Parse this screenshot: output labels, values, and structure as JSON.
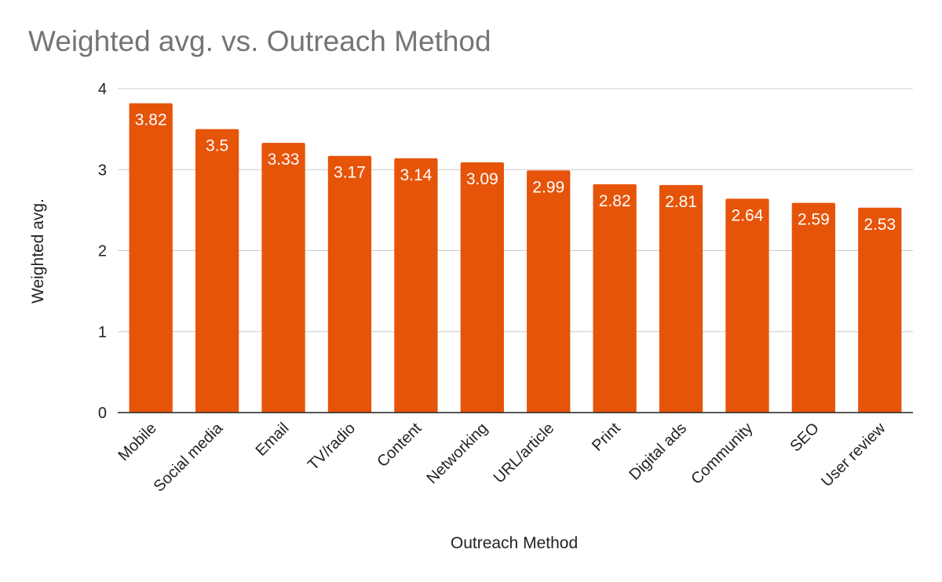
{
  "chart_data": {
    "type": "bar",
    "title": "Weighted avg. vs. Outreach Method",
    "xlabel": "Outreach Method",
    "ylabel": "Weighted avg.",
    "categories": [
      "Mobile",
      "Social media",
      "Email",
      "TV/radio",
      "Content",
      "Networking",
      "URL/article",
      "Print",
      "Digital ads",
      "Community",
      "SEO",
      "User review"
    ],
    "values": [
      3.82,
      3.5,
      3.33,
      3.17,
      3.14,
      3.09,
      2.99,
      2.82,
      2.81,
      2.64,
      2.59,
      2.53
    ],
    "data_labels": [
      "3.82",
      "3.5",
      "3.33",
      "3.17",
      "3.14",
      "3.09",
      "2.99",
      "2.82",
      "2.81",
      "2.64",
      "2.59",
      "2.53"
    ],
    "ylim": [
      0,
      4
    ],
    "yticks": [
      0,
      1,
      2,
      3,
      4
    ],
    "grid": true,
    "legend": "none",
    "bar_color": "#e6540a",
    "gridline_color": "#cccccc",
    "axis_color": "#222222"
  }
}
